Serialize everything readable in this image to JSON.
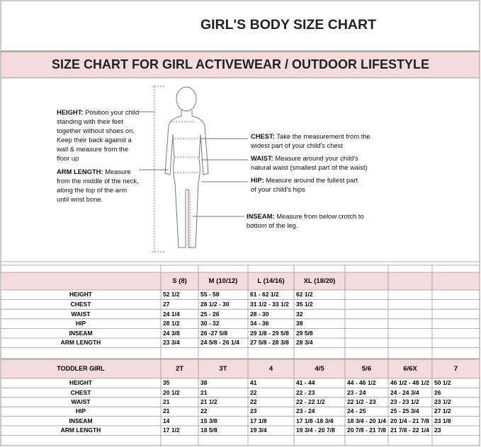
{
  "header": {
    "title": "GIRL'S BODY SIZE CHART",
    "subtitle": "SIZE CHART FOR GIRL ACTIVEWEAR / OUTDOOR LIFESTYLE"
  },
  "notes": [
    {
      "label": "HEIGHT:",
      "text": "Position your child standing with their feet together without shoes on. Keep their back against a wall & measure from the floor up"
    },
    {
      "label": "ARM LENGTH:",
      "text": "Measure from the middle of the neck, along the top of the arm until wrist bone."
    },
    {
      "label": "CHEST:",
      "text": "Take the measurement from the widest part of your child's chest"
    },
    {
      "label": "WAIST:",
      "text": "Measure around your child's natural waist (smallest part of the waist)"
    },
    {
      "label": "HIP:",
      "text": "Measure around the fullest part of your child's hips"
    },
    {
      "label": "INSEAM:",
      "text": "Measure from below crotch to bottom of the leg."
    }
  ],
  "table1": {
    "sizes": [
      "S (8)",
      "M (10/12)",
      "L (14/16)",
      "XL (18/20)"
    ],
    "rows": [
      [
        "HEIGHT",
        "52 1/2",
        "55 - 58",
        "61 - 62 1/2",
        "62 1/2"
      ],
      [
        "CHEST",
        "27",
        "28 1/2 - 30",
        "31 1/2 - 33 1/2",
        "35 1/2"
      ],
      [
        "WAIST",
        "24 1/4",
        "25 - 26",
        "28 - 30",
        "32"
      ],
      [
        "HIP",
        "28 1/2",
        "30 - 32",
        "34 - 36",
        "38"
      ],
      [
        "INSEAM",
        "24 3/8",
        "26 -27 5/8",
        "29 1/8 - 29 5/8",
        "29 5/8"
      ],
      [
        "ARM LENGTH",
        "23 3/4",
        "24 5/8 - 26 1/4",
        "27 5/8 - 28 3/8",
        "28 3/4"
      ]
    ]
  },
  "table2": {
    "title": "TODDLER GIRL",
    "sizes": [
      "2T",
      "3T",
      "4",
      "4/5",
      "5/6",
      "6/6X",
      "7"
    ],
    "rows": [
      [
        "HEIGHT",
        "35",
        "38",
        "41",
        "41 - 44",
        "44 - 46 1/2",
        "46 1/2 - 48 1/2",
        "50 1/2"
      ],
      [
        "CHEST",
        "20 1/2",
        "21",
        "22",
        "22 - 23",
        "23 - 24",
        "24 - 24 3/4",
        "26"
      ],
      [
        "WAIST",
        "21",
        "21 1/2",
        "22",
        "22 - 22 1/2",
        "22 1/2 - 23",
        "23 - 23 1/2",
        "23 1/2"
      ],
      [
        "HIP",
        "21",
        "22",
        "23",
        "23 - 24",
        "24 - 25",
        "25 - 25 3/4",
        "27 1/2"
      ],
      [
        "INSEAM",
        "14",
        "15 3/8",
        "17 1/8",
        "17 1/8 -18 3/4",
        "18 3/4 - 20 1/4",
        "20 1/4 - 21 7/8",
        "23 1/8"
      ],
      [
        "ARM LENGTH",
        "17 1/2",
        "18 5/8",
        "19 3/4",
        "19 3/4 - 20 7/8",
        "20 7/8 - 21 7/8",
        "21 7/8 - 22 1/4",
        "23"
      ]
    ]
  }
}
